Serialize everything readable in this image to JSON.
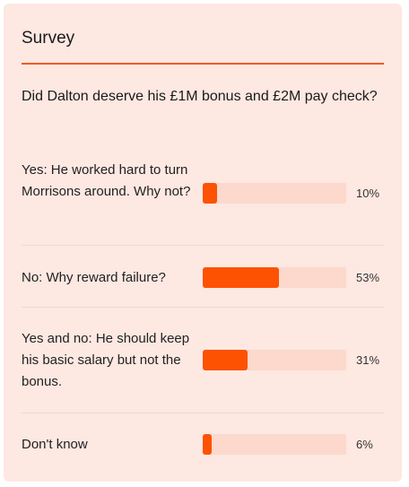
{
  "survey": {
    "title": "Survey",
    "question": "Did Dalton deserve his £1M bonus and £2M pay check?",
    "accent_color": "#fd5202",
    "track_color": "#fcd9cc",
    "background_color": "#fde8e2",
    "options": [
      {
        "label": "Yes: He worked hard to turn Morrisons around. Why not?",
        "percent": 10,
        "percent_text": "10%"
      },
      {
        "label": "No: Why reward failure?",
        "percent": 53,
        "percent_text": "53%"
      },
      {
        "label": "Yes and no: He should keep his basic salary but not the bonus.",
        "percent": 31,
        "percent_text": "31%"
      },
      {
        "label": "Don't know",
        "percent": 6,
        "percent_text": "6%"
      }
    ]
  }
}
